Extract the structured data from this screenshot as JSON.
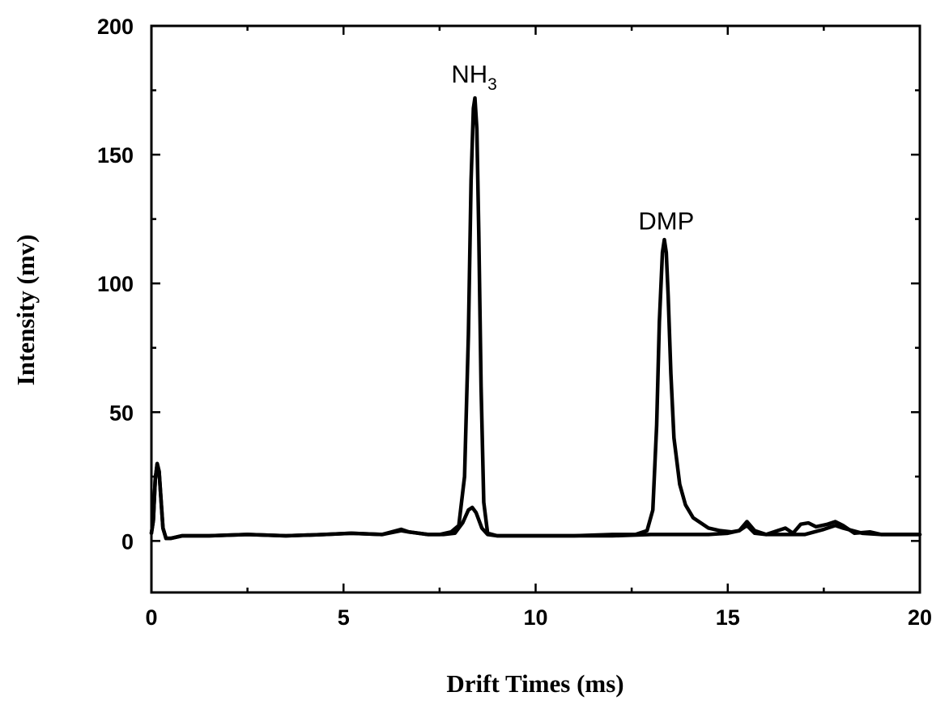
{
  "chart_data": {
    "type": "line",
    "title": "",
    "xlabel": "Drift Times (ms)",
    "ylabel": "Intensity (mv)",
    "xlim": [
      0,
      20
    ],
    "ylim": [
      -20,
      200
    ],
    "x_ticks": [
      0,
      5,
      10,
      15,
      20
    ],
    "y_ticks": [
      0,
      50,
      100,
      150,
      200
    ],
    "grid": false,
    "legend": "none",
    "line_color": "#000000",
    "annotations": [
      {
        "text": "NH",
        "subscript": "3",
        "x": 8.4,
        "y": 178
      },
      {
        "text": "DMP",
        "x": 13.4,
        "y": 121
      }
    ],
    "series": [
      {
        "points": [
          [
            0,
            3
          ],
          [
            0.05,
            8
          ],
          [
            0.1,
            24
          ],
          [
            0.15,
            30
          ],
          [
            0.2,
            27
          ],
          [
            0.25,
            16
          ],
          [
            0.3,
            5
          ],
          [
            0.38,
            1
          ],
          [
            0.5,
            1
          ],
          [
            0.8,
            2
          ],
          [
            1.5,
            2
          ],
          [
            2.5,
            2.5
          ],
          [
            3.5,
            2
          ],
          [
            4.5,
            2.5
          ],
          [
            5.2,
            3
          ],
          [
            6,
            2.5
          ],
          [
            6.5,
            4.5
          ],
          [
            6.7,
            3.5
          ],
          [
            7.2,
            2.5
          ],
          [
            7.5,
            2.5
          ],
          [
            7.8,
            3.5
          ],
          [
            8,
            6
          ],
          [
            8.15,
            25
          ],
          [
            8.25,
            80
          ],
          [
            8.32,
            140
          ],
          [
            8.38,
            168
          ],
          [
            8.42,
            172
          ],
          [
            8.47,
            160
          ],
          [
            8.52,
            120
          ],
          [
            8.58,
            60
          ],
          [
            8.65,
            15
          ],
          [
            8.75,
            3
          ],
          [
            9,
            2
          ],
          [
            10,
            2
          ],
          [
            11,
            2
          ],
          [
            12,
            2.5
          ],
          [
            12.6,
            2.5
          ],
          [
            12.9,
            4
          ],
          [
            13.05,
            12
          ],
          [
            13.15,
            45
          ],
          [
            13.22,
            85
          ],
          [
            13.3,
            112
          ],
          [
            13.35,
            117
          ],
          [
            13.4,
            112
          ],
          [
            13.45,
            95
          ],
          [
            13.52,
            65
          ],
          [
            13.6,
            40
          ],
          [
            13.75,
            22
          ],
          [
            13.9,
            14
          ],
          [
            14.1,
            9
          ],
          [
            14.3,
            7
          ],
          [
            14.5,
            5
          ],
          [
            14.8,
            4
          ],
          [
            15.1,
            3.5
          ],
          [
            15.3,
            4
          ],
          [
            15.5,
            6
          ],
          [
            15.7,
            3
          ],
          [
            16,
            2.5
          ],
          [
            16.5,
            2.5
          ],
          [
            17,
            2.5
          ],
          [
            17.5,
            4.5
          ],
          [
            17.8,
            6
          ],
          [
            18,
            5
          ],
          [
            18.5,
            3
          ],
          [
            19,
            2.5
          ],
          [
            20,
            2.5
          ]
        ]
      },
      {
        "points": [
          [
            0,
            3
          ],
          [
            0.05,
            8
          ],
          [
            0.1,
            24
          ],
          [
            0.15,
            30
          ],
          [
            0.2,
            27
          ],
          [
            0.25,
            16
          ],
          [
            0.3,
            5
          ],
          [
            0.38,
            1
          ],
          [
            0.5,
            1
          ],
          [
            0.8,
            2
          ],
          [
            1.5,
            2
          ],
          [
            2.5,
            2.5
          ],
          [
            3.5,
            2
          ],
          [
            4.5,
            2.5
          ],
          [
            5.2,
            3
          ],
          [
            6,
            2.5
          ],
          [
            6.5,
            4
          ],
          [
            6.7,
            3.5
          ],
          [
            7.2,
            2.5
          ],
          [
            7.6,
            2.5
          ],
          [
            7.9,
            3
          ],
          [
            8.1,
            7
          ],
          [
            8.25,
            12
          ],
          [
            8.35,
            13
          ],
          [
            8.45,
            11
          ],
          [
            8.6,
            5
          ],
          [
            8.75,
            2.5
          ],
          [
            9,
            2
          ],
          [
            10,
            2
          ],
          [
            11,
            2
          ],
          [
            12,
            2
          ],
          [
            13,
            2.5
          ],
          [
            14,
            2.5
          ],
          [
            14.5,
            2.5
          ],
          [
            15,
            3
          ],
          [
            15.3,
            4
          ],
          [
            15.5,
            7.5
          ],
          [
            15.7,
            4
          ],
          [
            16,
            2.5
          ],
          [
            16.3,
            4
          ],
          [
            16.5,
            5
          ],
          [
            16.7,
            3
          ],
          [
            16.9,
            6.5
          ],
          [
            17.1,
            7
          ],
          [
            17.3,
            5.5
          ],
          [
            17.6,
            6.5
          ],
          [
            17.8,
            7.5
          ],
          [
            18,
            6
          ],
          [
            18.3,
            3
          ],
          [
            18.7,
            3.5
          ],
          [
            19,
            2.5
          ],
          [
            20,
            2.5
          ]
        ]
      }
    ]
  }
}
